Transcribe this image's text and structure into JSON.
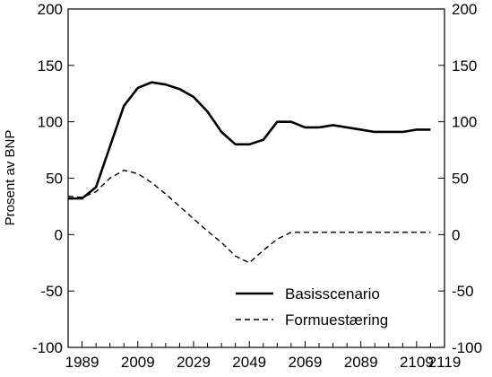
{
  "chart_data": {
    "type": "line",
    "title": "",
    "xlabel": "",
    "ylabel": "Prosent av BNP",
    "xlim": [
      1984,
      2119
    ],
    "ylim": [
      -100,
      200
    ],
    "xticks": [
      1989,
      2009,
      2029,
      2049,
      2069,
      2089,
      2109,
      2119
    ],
    "yticks": [
      -100,
      -50,
      0,
      50,
      100,
      150,
      200
    ],
    "grid": false,
    "legend_position": "bottom-right",
    "series": [
      {
        "name": "Basisscenario",
        "style": "solid",
        "x": [
          1984,
          1989,
          1994,
          1999,
          2004,
          2009,
          2014,
          2019,
          2024,
          2029,
          2034,
          2039,
          2044,
          2049,
          2054,
          2059,
          2064,
          2069,
          2074,
          2079,
          2084,
          2089,
          2094,
          2099,
          2104,
          2109,
          2114
        ],
        "values": [
          32,
          32,
          42,
          78,
          114,
          130,
          135,
          133,
          129,
          122,
          109,
          91,
          80,
          80,
          84,
          100,
          100,
          95,
          95,
          97,
          95,
          93,
          91,
          91,
          91,
          93,
          93
        ]
      },
      {
        "name": "Formuestæring",
        "style": "dashed",
        "x": [
          1984,
          1989,
          1994,
          1999,
          2004,
          2009,
          2014,
          2019,
          2024,
          2029,
          2034,
          2039,
          2044,
          2049,
          2054,
          2059,
          2064,
          2069,
          2074,
          2079,
          2084,
          2089,
          2094,
          2099,
          2104,
          2109,
          2114
        ],
        "values": [
          34,
          33,
          38,
          50,
          57,
          54,
          46,
          36,
          25,
          14,
          3,
          -7,
          -19,
          -25,
          -14,
          -4,
          2,
          2,
          2,
          2,
          2,
          2,
          2,
          2,
          2,
          2,
          2
        ]
      }
    ]
  }
}
